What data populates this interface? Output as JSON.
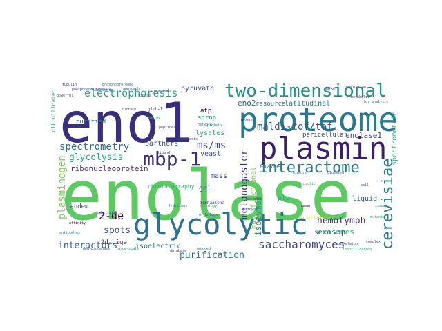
{
  "words": [
    {
      "text": "enolase",
      "color": "#5ec962"
    },
    {
      "text": "eno1",
      "color": "#3b2f7a"
    },
    {
      "text": "proteome",
      "color": "#2a788e"
    },
    {
      "text": "plasmin",
      "color": "#3b1f6b"
    },
    {
      "text": "glycolytic",
      "color": "#2c728e"
    },
    {
      "text": "two-dimensional",
      "color": "#21918c"
    },
    {
      "text": "mbp-1",
      "color": "#3b2f7a"
    },
    {
      "text": "interactome",
      "color": "#2a788e"
    },
    {
      "text": "cerevisiae",
      "color": "#26828e"
    },
    {
      "text": "spectrometry",
      "color": "#2c728e"
    },
    {
      "text": "electrophoresis",
      "color": "#22a884"
    },
    {
      "text": "saccharomyces",
      "color": "#3e4a89"
    },
    {
      "text": "maldi-tof/tof",
      "color": "#39568c"
    },
    {
      "text": "ms/ms",
      "color": "#3e4a89"
    },
    {
      "text": "glycolysis",
      "color": "#22a884"
    },
    {
      "text": "hemolymph",
      "color": "#46327e"
    },
    {
      "text": "purification",
      "color": "#2c728e"
    },
    {
      "text": "interactors",
      "color": "#31688e"
    },
    {
      "text": "plasminogen",
      "color": "#7ad151"
    },
    {
      "text": "melanogaster",
      "color": "#46337e"
    },
    {
      "text": "2-de",
      "color": "#440154"
    },
    {
      "text": "spots",
      "color": "#3b528b"
    },
    {
      "text": "eno2",
      "color": "#31688e"
    },
    {
      "text": "enolase1",
      "color": "#3e4a89"
    },
    {
      "text": "exosomes",
      "color": "#35b779"
    },
    {
      "text": "ribonucleoprotein",
      "color": "#46327e"
    },
    {
      "text": "isozymes",
      "color": "#21918c"
    },
    {
      "text": "lysates",
      "color": "#22a884"
    },
    {
      "text": "partners",
      "color": "#3b528b"
    },
    {
      "text": "pyruvate",
      "color": "#3b528b"
    },
    {
      "text": "latitudinal",
      "color": "#2a788e"
    },
    {
      "text": "resource",
      "color": "#31688e"
    },
    {
      "text": "yeast",
      "color": "#3b528b"
    },
    {
      "text": "mass",
      "color": "#3e4a89"
    },
    {
      "text": "gel",
      "color": "#3b528b"
    },
    {
      "text": "plg",
      "color": "#22a884"
    },
    {
      "text": "sera",
      "color": "#2a788e"
    },
    {
      "text": "vcp",
      "color": "#3e4a89"
    },
    {
      "text": "liquid",
      "color": "#31688e"
    },
    {
      "text": "tandem",
      "color": "#3e4a89"
    },
    {
      "text": "isoelectric",
      "color": "#2a788e"
    },
    {
      "text": "2d-dige",
      "color": "#46327e"
    },
    {
      "text": "purified",
      "color": "#2c728e"
    },
    {
      "text": "snrnp",
      "color": "#21918c"
    },
    {
      "text": "atp",
      "color": "#440154"
    },
    {
      "text": "pericellular",
      "color": "#3e4a89"
    },
    {
      "text": "enzyme",
      "color": "#31688e"
    },
    {
      "text": "spectrometric",
      "color": "#35b779"
    },
    {
      "text": "chromatography",
      "color": "#35b779"
    },
    {
      "text": "multifunctional",
      "color": "#7ad151"
    },
    {
      "text": "localization",
      "color": "#bddf26"
    },
    {
      "text": "citrullinated",
      "color": "#35b779"
    },
    {
      "text": "global",
      "color": "#3e4a89"
    },
    {
      "text": "alphaalpha",
      "color": "#46327e"
    },
    {
      "text": "fdr analysis",
      "color": "#31688e"
    },
    {
      "text": "identification",
      "color": "#22a884"
    },
    {
      "text": "cytoskeleton",
      "color": "#3b528b"
    },
    {
      "text": "pathway",
      "color": "#3b528b"
    },
    {
      "text": "mutants",
      "color": "#35b779"
    },
    {
      "text": "complex",
      "color": "#3b528b"
    },
    {
      "text": "database",
      "color": "#46327e"
    },
    {
      "text": "substrates",
      "color": "#3e4a89"
    },
    {
      "text": "affinity",
      "color": "#440154"
    },
    {
      "text": "antibodies",
      "color": "#2a788e"
    },
    {
      "text": "dehydrogenase",
      "color": "#3b528b"
    },
    {
      "text": "large-scale",
      "color": "#26828e"
    },
    {
      "text": "approach",
      "color": "#3b528b"
    },
    {
      "text": "surface",
      "color": "#3b528b"
    },
    {
      "text": "phosphoproteome",
      "color": "#2a788e"
    },
    {
      "text": "chaperones",
      "color": "#3b528b"
    },
    {
      "text": "tubulin",
      "color": "#46327e"
    },
    {
      "text": "phosphoenolpyruvate",
      "color": "#3e4a89"
    },
    {
      "text": "network",
      "color": "#2a788e"
    },
    {
      "text": "kinase",
      "color": "#31688e"
    },
    {
      "text": "ligand",
      "color": "#3e4a89"
    },
    {
      "text": "ontology",
      "color": "#35b779"
    },
    {
      "text": "secreted",
      "color": "#46327e"
    },
    {
      "text": "hypothesis",
      "color": "#3e4a89"
    },
    {
      "text": "reduced",
      "color": "#31688e"
    },
    {
      "text": "fractions",
      "color": "#2a788e"
    },
    {
      "text": "orthologs",
      "color": "#3b528b"
    },
    {
      "text": "cytosolic",
      "color": "#35b779"
    },
    {
      "text": "binding",
      "color": "#2a788e"
    },
    {
      "text": "digested",
      "color": "#3b528b"
    },
    {
      "text": "human",
      "color": "#440154"
    },
    {
      "text": "cell",
      "color": "#3e4a89"
    },
    {
      "text": "tissue",
      "color": "#31688e"
    },
    {
      "text": "protein",
      "color": "#2a788e"
    },
    {
      "text": "peptides",
      "color": "#3b528b"
    },
    {
      "text": "levels",
      "color": "#46327e"
    },
    {
      "text": "energy",
      "color": "#35b779"
    },
    {
      "text": "metabolic",
      "color": "#3e4a89"
    },
    {
      "text": "marker",
      "color": "#46327e"
    },
    {
      "text": "powerful",
      "color": "#3b528b"
    },
    {
      "text": "abundance",
      "color": "#2a788e"
    },
    {
      "text": "regulation",
      "color": "#3b528b"
    }
  ]
}
